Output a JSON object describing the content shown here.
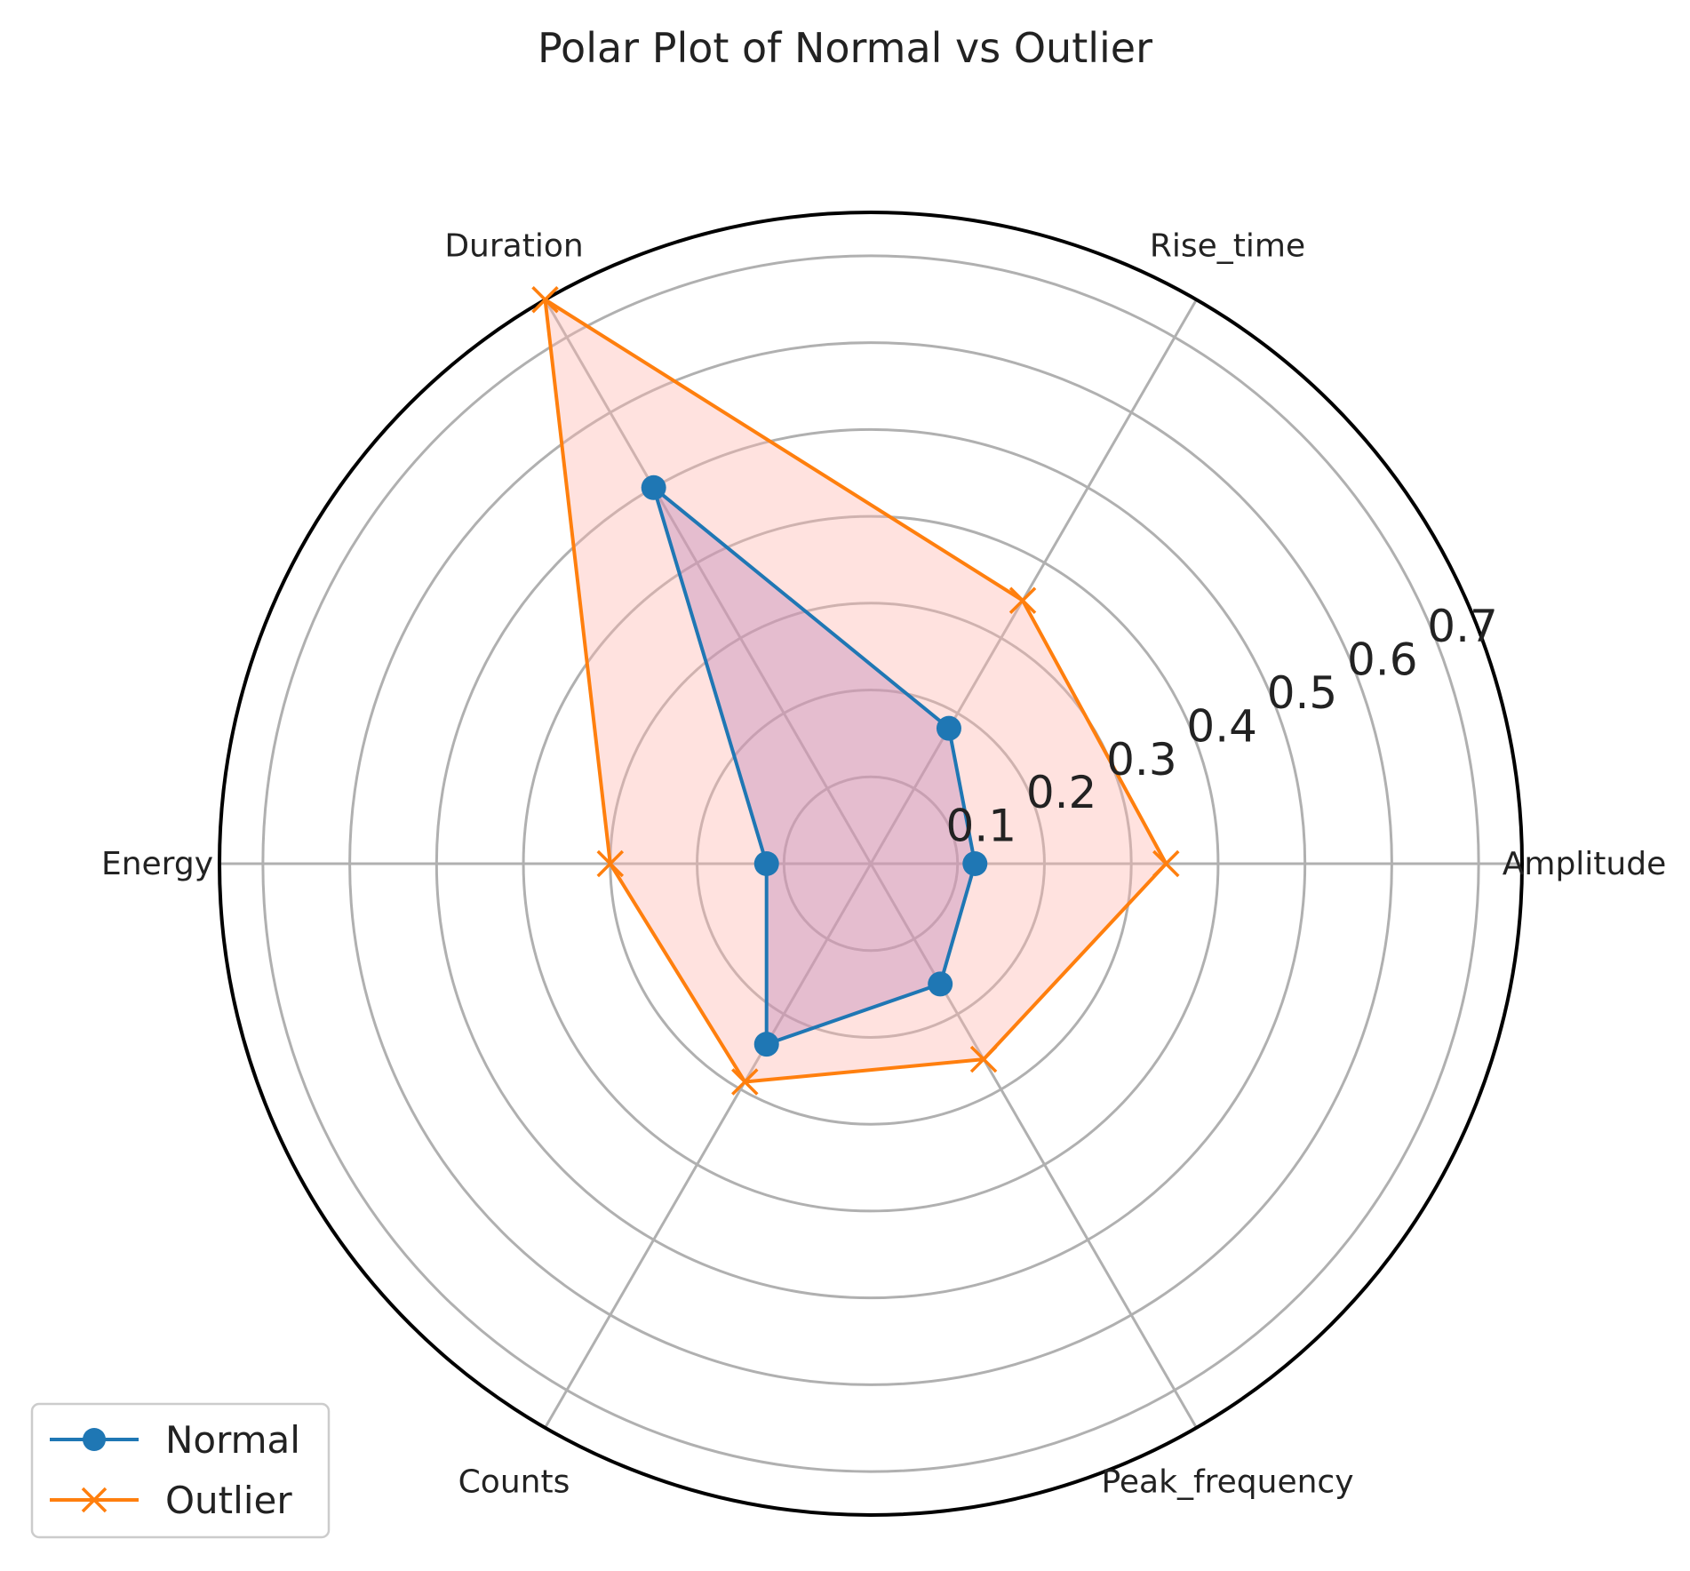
{
  "chart_data": {
    "type": "radar",
    "title": "Polar Plot of Normal vs Outlier",
    "categories": [
      "Amplitude",
      "Rise_time",
      "Duration",
      "Energy",
      "Counts",
      "Peak_frequency"
    ],
    "rlim": [
      0,
      0.75
    ],
    "rticks": [
      0.1,
      0.2,
      0.3,
      0.4,
      0.5,
      0.6,
      0.7
    ],
    "rtick_labels": [
      "0.1",
      "0.2",
      "0.3",
      "0.4",
      "0.5",
      "0.6",
      "0.7"
    ],
    "grid": true,
    "legend_position": "lower-left",
    "series": [
      {
        "name": "Normal",
        "values": [
          0.12,
          0.18,
          0.5,
          0.12,
          0.24,
          0.16
        ],
        "color": "#1f77b4",
        "fill": "#9467bd",
        "marker": "circle"
      },
      {
        "name": "Outlier",
        "values": [
          0.34,
          0.35,
          0.75,
          0.3,
          0.29,
          0.26
        ],
        "color": "#ff7f0e",
        "fill": "#ffb6b0",
        "marker": "x"
      }
    ]
  }
}
